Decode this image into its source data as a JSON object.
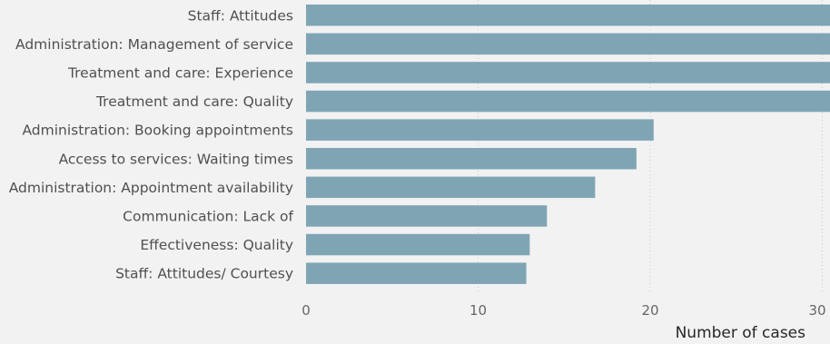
{
  "chart_data": {
    "type": "bar",
    "orientation": "horizontal",
    "categories": [
      "Staff: Attitudes",
      "Administration: Management of service",
      "Treatment and care: Experience",
      "Treatment and care: Quality",
      "Administration: Booking appointments",
      "Access to services: Waiting times",
      "Administration: Appointment availability",
      "Communication: Lack of",
      "Effectiveness: Quality",
      "Staff: Attitudes/ Courtesy"
    ],
    "values": [
      31,
      31,
      31,
      31,
      20.2,
      19.2,
      16.8,
      14,
      13,
      12.8
    ],
    "xlabel": "Number of cases",
    "ylabel": "",
    "xlim": [
      0,
      30
    ],
    "xticks": [
      "0",
      "10",
      "20",
      "30"
    ],
    "grid": "vertical dotted",
    "bar_color": "#7fa5b5",
    "background": "#f2f2f2"
  }
}
